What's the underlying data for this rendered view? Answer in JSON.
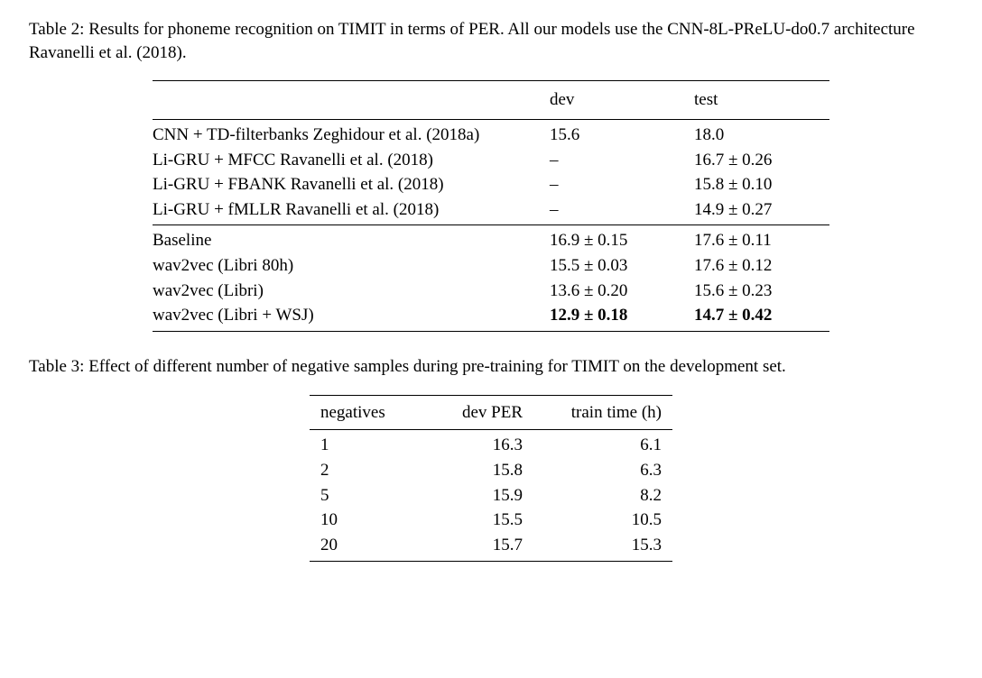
{
  "table2": {
    "caption": "Table 2: Results for phoneme recognition on TIMIT in terms of PER. All our models use the CNN-8L-PReLU-do0.7 architecture Ravanelli et al. (2018).",
    "columns": {
      "method": "",
      "dev": "dev",
      "test": "test"
    },
    "group1": [
      {
        "method": "CNN + TD-filterbanks Zeghidour et al. (2018a)",
        "dev": "15.6",
        "test": "18.0"
      },
      {
        "method": "Li-GRU + MFCC Ravanelli et al. (2018)",
        "dev": "–",
        "test": "16.7 ± 0.26"
      },
      {
        "method": "Li-GRU + FBANK Ravanelli et al. (2018)",
        "dev": "–",
        "test": "15.8 ± 0.10"
      },
      {
        "method": "Li-GRU + fMLLR Ravanelli et al. (2018)",
        "dev": "–",
        "test": "14.9 ± 0.27"
      }
    ],
    "group2": [
      {
        "method": "Baseline",
        "dev": "16.9 ± 0.15",
        "test": "17.6 ± 0.11",
        "bold": false
      },
      {
        "method": "wav2vec (Libri 80h)",
        "dev": "15.5 ± 0.03",
        "test": "17.6 ± 0.12",
        "bold": false
      },
      {
        "method": "wav2vec (Libri)",
        "dev": "13.6 ± 0.20",
        "test": "15.6 ± 0.23",
        "bold": false
      },
      {
        "method": "wav2vec (Libri + WSJ)",
        "dev": "12.9 ± 0.18",
        "test": "14.7 ± 0.42",
        "bold": true
      }
    ]
  },
  "table3": {
    "caption": "Table 3: Effect of different number of negative samples during pre-training for TIMIT on the development set.",
    "columns": {
      "negatives": "negatives",
      "devper": "dev PER",
      "traintime": "train time (h)"
    },
    "rows": [
      {
        "neg": "1",
        "dev": "16.3",
        "time": "6.1"
      },
      {
        "neg": "2",
        "dev": "15.8",
        "time": "6.3"
      },
      {
        "neg": "5",
        "dev": "15.9",
        "time": "8.2"
      },
      {
        "neg": "10",
        "dev": "15.5",
        "time": "10.5"
      },
      {
        "neg": "20",
        "dev": "15.7",
        "time": "15.3"
      }
    ]
  }
}
